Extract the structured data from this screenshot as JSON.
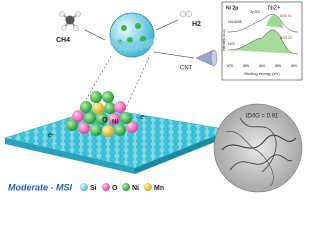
{
  "molecules": {
    "reactant": "CH4",
    "product": "H2",
    "carbon": "CNT"
  },
  "xps_inset": {
    "title": "Ni 2p",
    "peak_label": "Ni2+",
    "orbital": "2p3/2",
    "samples": [
      "Ni10MS",
      "N/S"
    ],
    "peaks": [
      "855.91",
      "855.22"
    ],
    "y_label": "Intensity (a.u.)",
    "x_label": "Binding energy (eV)",
    "x_ticks": [
      "870",
      "865",
      "860",
      "855",
      "850"
    ]
  },
  "surface_labels": {
    "oxygen": "O",
    "nickel": "Ni",
    "electron_left": "e-",
    "electron_right": "e-"
  },
  "tem_label": "ID/IG = 0.91",
  "caption": "Moderate - MSI",
  "legend": [
    "Si",
    "O",
    "Ni",
    "Mn"
  ]
}
